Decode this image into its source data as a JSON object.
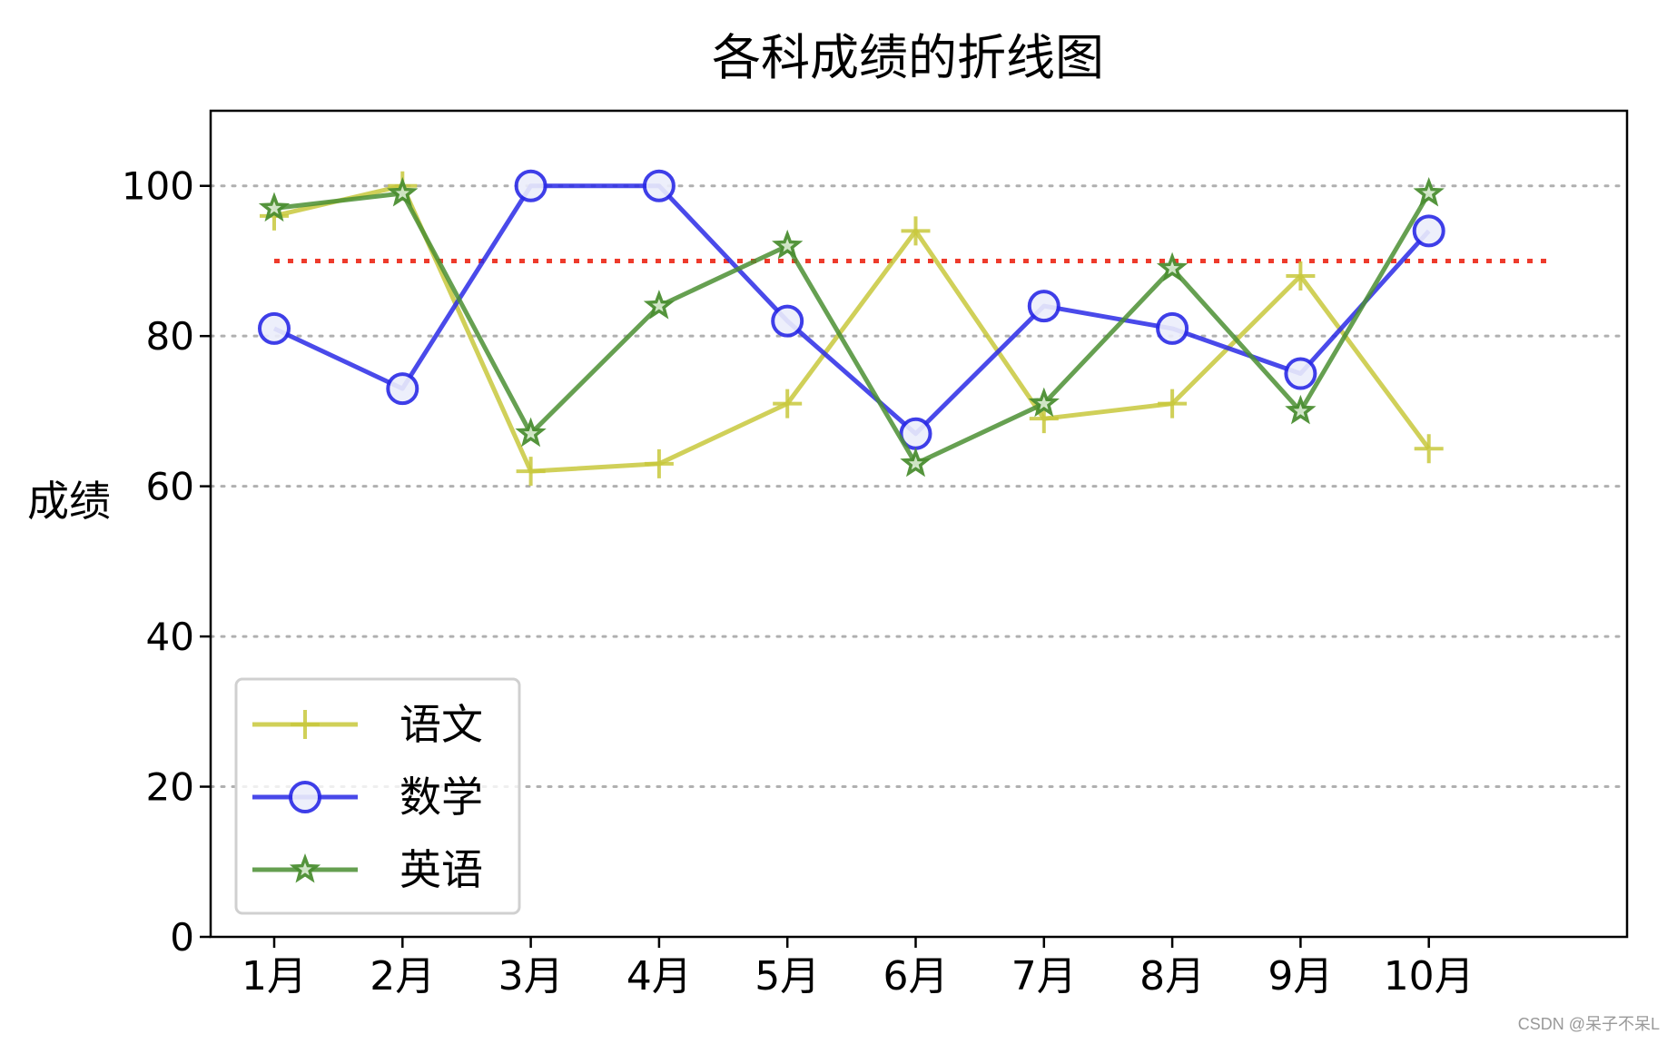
{
  "chart_data": {
    "type": "line",
    "title": "各科成绩的折线图",
    "xlabel": "",
    "ylabel": "成绩",
    "categories": [
      "1月",
      "2月",
      "3月",
      "4月",
      "5月",
      "6月",
      "7月",
      "8月",
      "9月",
      "10月"
    ],
    "ylim": [
      0,
      110
    ],
    "yticks": [
      0,
      20,
      40,
      60,
      80,
      100
    ],
    "grid": "horizontal dotted",
    "legend_position": "lower-left",
    "reference_line": {
      "y": 90,
      "color": "#ee3b2c",
      "style": "dotted"
    },
    "series": [
      {
        "name": "语文",
        "marker": "plus",
        "color": "#c8c83c",
        "values": [
          96,
          100,
          62,
          63,
          71,
          94,
          69,
          71,
          88,
          65
        ]
      },
      {
        "name": "数学",
        "marker": "circle",
        "color": "#2a2ae6",
        "values": [
          81,
          73,
          100,
          100,
          82,
          67,
          84,
          81,
          75,
          94
        ]
      },
      {
        "name": "英语",
        "marker": "star",
        "color": "#4b8f32",
        "values": [
          97,
          99,
          67,
          84,
          92,
          63,
          71,
          89,
          70,
          99
        ]
      }
    ]
  },
  "watermark": "CSDN @呆子不呆L"
}
